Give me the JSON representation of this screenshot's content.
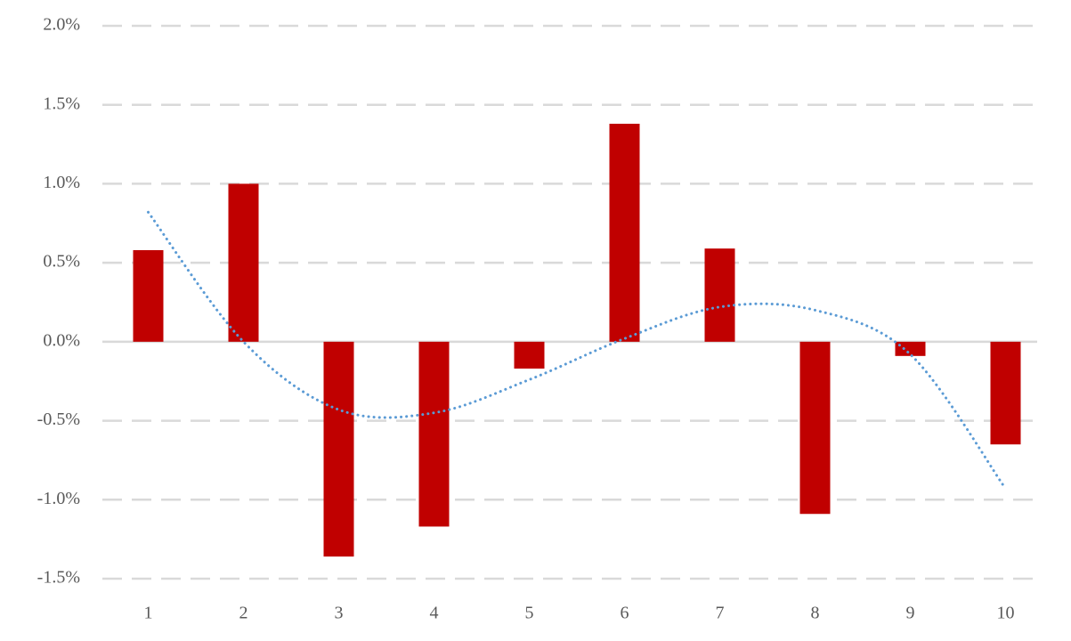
{
  "chart_data": {
    "type": "bar",
    "categories": [
      "1",
      "2",
      "3",
      "4",
      "5",
      "6",
      "7",
      "8",
      "9",
      "10"
    ],
    "series": [
      {
        "type": "bar",
        "color": "#c00000",
        "values": [
          0.58,
          1.0,
          -1.36,
          -1.17,
          -0.17,
          1.38,
          0.59,
          -1.09,
          -0.09,
          -0.65
        ]
      },
      {
        "type": "line",
        "style": "dotted",
        "color": "#5b9bd5",
        "values": [
          0.82,
          0.0,
          -0.43,
          -0.45,
          -0.24,
          0.02,
          0.22,
          0.2,
          -0.08,
          -0.93
        ]
      }
    ],
    "ylim": [
      -1.5,
      2.0
    ],
    "yticks": [
      {
        "value": -1.5,
        "label": "-1.5%"
      },
      {
        "value": -1.0,
        "label": "-1.0%"
      },
      {
        "value": -0.5,
        "label": "-0.5%"
      },
      {
        "value": 0,
        "label": "0.0%"
      },
      {
        "value": 0.5,
        "label": "0.5%"
      },
      {
        "value": 1.0,
        "label": "1.0%"
      },
      {
        "value": 1.5,
        "label": "1.5%"
      },
      {
        "value": 2.0,
        "label": "2.0%"
      }
    ],
    "grid": true
  }
}
